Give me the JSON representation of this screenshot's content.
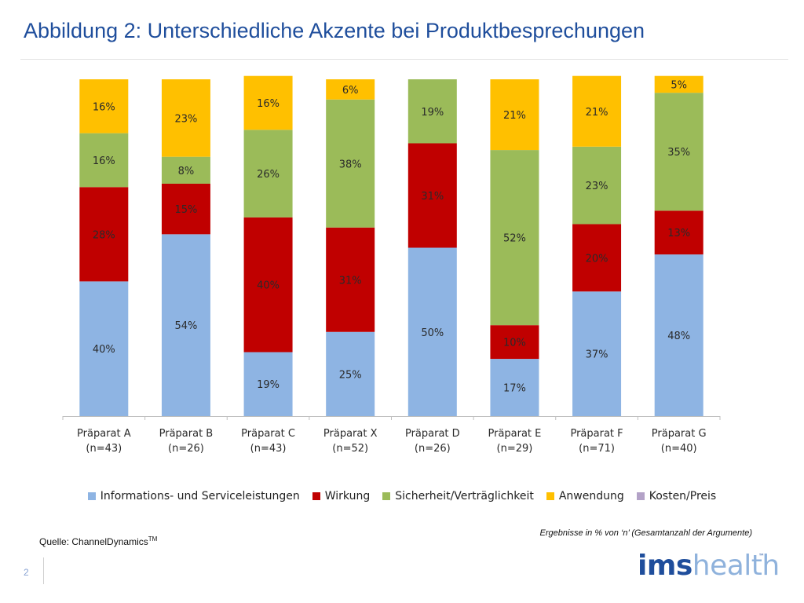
{
  "title": "Abbildung 2: Unterschiedliche Akzente bei Produktbesprechungen",
  "colors": {
    "informations": "#8eb4e3",
    "wirkung": "#c00000",
    "sicherheit": "#9bbb59",
    "anwendung": "#ffc000",
    "kosten": "#b3a2c7"
  },
  "chart_data": {
    "type": "bar",
    "stacked": true,
    "categories": [
      "Präparat A",
      "Präparat B",
      "Präparat C",
      "Präparat X",
      "Präparat D",
      "Präparat E",
      "Präparat F",
      "Präparat G"
    ],
    "category_n": [
      "(n=43)",
      "(n=26)",
      "(n=43)",
      "(n=52)",
      "(n=26)",
      "(n=29)",
      "(n=71)",
      "(n=40)"
    ],
    "series": [
      {
        "name": "Informations- und Serviceleistungen",
        "color": "#8eb4e3",
        "values": [
          40,
          54,
          19,
          25,
          50,
          17,
          37,
          48
        ]
      },
      {
        "name": "Wirkung",
        "color": "#c00000",
        "values": [
          28,
          15,
          40,
          31,
          31,
          10,
          20,
          13
        ]
      },
      {
        "name": "Sicherheit/Verträglichkeit",
        "color": "#9bbb59",
        "values": [
          16,
          8,
          26,
          38,
          19,
          52,
          23,
          35
        ]
      },
      {
        "name": "Anwendung",
        "color": "#ffc000",
        "values": [
          16,
          23,
          16,
          6,
          0,
          21,
          21,
          5
        ]
      },
      {
        "name": "Kosten/Preis",
        "color": "#b3a2c7",
        "values": [
          0,
          0,
          0,
          0,
          0,
          0,
          0,
          0
        ]
      }
    ],
    "ylim": [
      0,
      100
    ],
    "unit": "%"
  },
  "note": "Ergebnisse in % von ‘n’  (Gesamtanzahl der Argumente)",
  "source": "Quelle:  ChannelDynamics",
  "source_tm": "TM",
  "page_number": "2",
  "logo": {
    "part1": "ims",
    "part2": "health",
    "tm": "™"
  }
}
